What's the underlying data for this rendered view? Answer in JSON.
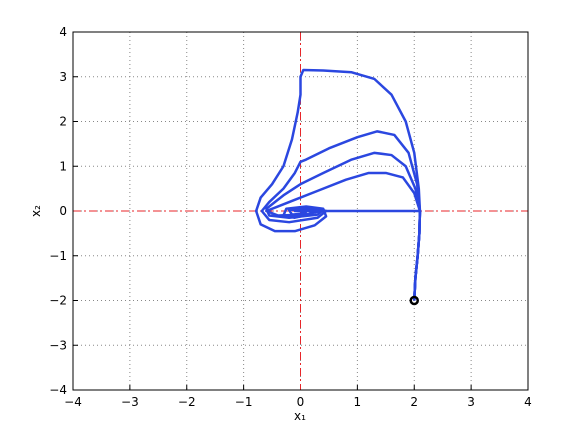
{
  "chart_data": {
    "type": "line",
    "xlabel": "x₁",
    "ylabel": "x₂",
    "xlim": [
      -4,
      4
    ],
    "ylim": [
      -4,
      4
    ],
    "xticks": [
      {
        "value": -4,
        "label": "−4"
      },
      {
        "value": -3,
        "label": "−3"
      },
      {
        "value": -2,
        "label": "−2"
      },
      {
        "value": -1,
        "label": "−1"
      },
      0,
      1,
      2,
      3,
      4
    ],
    "yticks": [
      {
        "value": -4,
        "label": "−4"
      },
      {
        "value": -3,
        "label": "−3"
      },
      {
        "value": -2,
        "label": "−2"
      },
      {
        "value": -1,
        "label": "−1"
      },
      0,
      1,
      2,
      3,
      4
    ],
    "grid": true,
    "reference_lines": {
      "x": 0,
      "y": 0,
      "color": "#e8262a"
    },
    "start_point": {
      "x": 2,
      "y": -2,
      "color": "#000000"
    },
    "series": [
      {
        "color": "#2b47e0",
        "x": [
          2,
          2.02,
          2.06,
          2.09,
          2.1,
          2.08,
          2.0,
          1.85,
          1.6,
          1.3,
          0.9,
          0.4,
          0.05,
          0,
          0,
          -0.05,
          -0.15,
          -0.3,
          -0.5,
          -0.7,
          -0.78,
          -0.7,
          -0.45,
          -0.1,
          0.25,
          0.45,
          0.4,
          0.1,
          -0.25,
          -0.3,
          -0.1,
          0.15,
          0.2,
          0
        ],
        "values": [
          -2,
          -1.5,
          -1,
          -0.5,
          0,
          0.5,
          1.3,
          2.0,
          2.6,
          2.95,
          3.1,
          3.14,
          3.15,
          3.0,
          2.6,
          2.2,
          1.6,
          1.0,
          0.6,
          0.3,
          0,
          -0.3,
          -0.45,
          -0.45,
          -0.32,
          -0.12,
          0.05,
          0.1,
          0.05,
          -0.1,
          -0.15,
          -0.08,
          0,
          0.03
        ]
      },
      {
        "color": "#2b47e0",
        "x": [
          2,
          2.02,
          2.06,
          2.09,
          2.1,
          2.05,
          1.9,
          1.65,
          1.35,
          1.0,
          0.5,
          0.1,
          0,
          -0.1,
          -0.3,
          -0.55,
          -0.68,
          -0.55,
          -0.2,
          0.3,
          0.45,
          0.2,
          -0.2,
          -0.15,
          0.1,
          0
        ],
        "values": [
          -2,
          -1.5,
          -1,
          -0.5,
          0,
          0.6,
          1.3,
          1.7,
          1.78,
          1.65,
          1.4,
          1.15,
          1.1,
          0.85,
          0.5,
          0.2,
          0,
          -0.2,
          -0.25,
          -0.15,
          0,
          0.07,
          0.02,
          -0.08,
          -0.05,
          0
        ]
      },
      {
        "color": "#2b47e0",
        "x": [
          2,
          2.02,
          2.06,
          2.09,
          2.1,
          2.02,
          1.85,
          1.6,
          1.3,
          0.9,
          0.4,
          0,
          -0.3,
          -0.6,
          -0.55,
          -0.2,
          0.3,
          0.4,
          0,
          -0.1,
          0
        ],
        "values": [
          -2,
          -1.5,
          -1,
          -0.5,
          0,
          0.5,
          1.0,
          1.25,
          1.3,
          1.15,
          0.85,
          0.6,
          0.35,
          0.05,
          -0.1,
          -0.15,
          -0.08,
          0.02,
          0.05,
          0,
          0
        ]
      },
      {
        "color": "#2b47e0",
        "x": [
          2,
          2.02,
          2.06,
          2.09,
          2.1,
          2.0,
          1.8,
          1.5,
          1.2,
          0.8,
          0.3,
          -0.1,
          -0.4,
          -0.6,
          -0.4,
          0.1,
          0.35,
          0,
          0
        ],
        "values": [
          -2,
          -1.5,
          -1,
          -0.5,
          0,
          0.4,
          0.75,
          0.85,
          0.85,
          0.7,
          0.45,
          0.25,
          0.1,
          0,
          -0.1,
          -0.08,
          0,
          0.03,
          0
        ]
      },
      {
        "color": "#2b47e0",
        "x": [
          2,
          2.02,
          2.06,
          2.09,
          2.1,
          1.5,
          1.0,
          0.5,
          0
        ],
        "values": [
          -2,
          -1.5,
          -1,
          -0.5,
          0,
          0,
          0,
          0,
          0
        ]
      }
    ]
  }
}
